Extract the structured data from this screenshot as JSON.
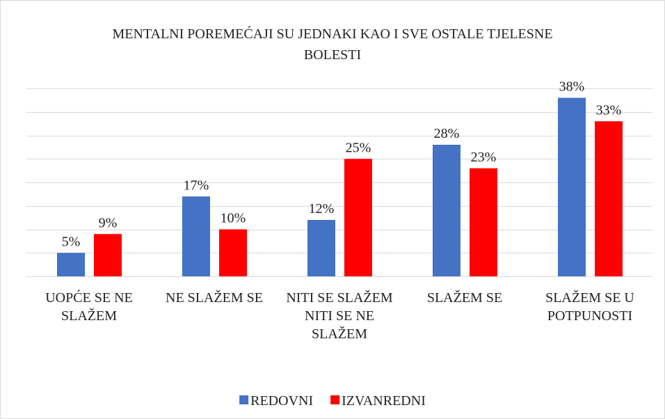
{
  "chart_data": {
    "type": "bar",
    "title": "MENTALNI POREMEĆAJI SU JEDNAKI KAO I SVE OSTALE TJELESNE BOLESTI",
    "categories": [
      "UOPĆE SE NE SLAŽEM",
      "NE SLAŽEM SE",
      "NITI SE SLAŽEM NITI SE NE SLAŽEM",
      "SLAŽEM SE",
      "SLAŽEM SE U POTPUNOSTI"
    ],
    "series": [
      {
        "name": "REDOVNI",
        "color": "#4472c4",
        "values": [
          5,
          17,
          12,
          28,
          38
        ],
        "value_labels": [
          "5%",
          "17%",
          "12%",
          "28%",
          "38%"
        ]
      },
      {
        "name": "IZVANREDNI",
        "color": "#ff0000",
        "values": [
          9,
          10,
          25,
          23,
          33
        ],
        "value_labels": [
          "9%",
          "10%",
          "25%",
          "23%",
          "33%"
        ]
      }
    ],
    "ylim": [
      0,
      40
    ],
    "yticks": [
      0,
      5,
      10,
      15,
      20,
      25,
      30,
      35,
      40
    ],
    "grid": true,
    "legend": "bottom"
  }
}
